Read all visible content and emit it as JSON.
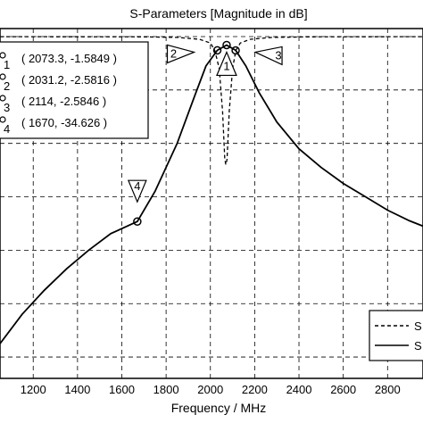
{
  "chart_data": {
    "type": "line",
    "title": "S-Parameters [Magnitude in dB]",
    "xlabel": "Frequency / MHz",
    "ylabel": "",
    "xlim": [
      1050,
      2960
    ],
    "ylim": [
      -64,
      1.5
    ],
    "x_ticks": [
      1200,
      1400,
      1600,
      1800,
      2000,
      2200,
      2400,
      2600,
      2800
    ],
    "x_tick_labels": [
      "1200",
      "1400",
      "1600",
      "1800",
      "2000",
      "2200",
      "2400",
      "2600",
      "2800"
    ],
    "y_gridlines": [
      0,
      -10,
      -20,
      -30,
      -40,
      -50,
      -60
    ],
    "grid": true,
    "series": [
      {
        "name": "S",
        "style": "dashed",
        "points": [
          [
            1050,
            -0.02
          ],
          [
            1400,
            -0.03
          ],
          [
            1700,
            -0.06
          ],
          [
            1850,
            -0.15
          ],
          [
            1950,
            -0.5
          ],
          [
            2000,
            -1.2
          ],
          [
            2020,
            -2.6
          ],
          [
            2040,
            -6
          ],
          [
            2055,
            -14
          ],
          [
            2065,
            -23
          ],
          [
            2070,
            -24
          ],
          [
            2075,
            -23
          ],
          [
            2085,
            -14
          ],
          [
            2100,
            -6
          ],
          [
            2115,
            -2.6
          ],
          [
            2135,
            -1.2
          ],
          [
            2180,
            -0.5
          ],
          [
            2280,
            -0.15
          ],
          [
            2450,
            -0.06
          ],
          [
            2700,
            -0.03
          ],
          [
            2960,
            -0.02
          ]
        ]
      },
      {
        "name": "S",
        "style": "solid",
        "points": [
          [
            1050,
            -57.5
          ],
          [
            1150,
            -52
          ],
          [
            1250,
            -47.5
          ],
          [
            1350,
            -43.5
          ],
          [
            1450,
            -40
          ],
          [
            1550,
            -36.9
          ],
          [
            1670,
            -34.626
          ],
          [
            1750,
            -29
          ],
          [
            1850,
            -20
          ],
          [
            1930,
            -11
          ],
          [
            1980,
            -5.5
          ],
          [
            2031.2,
            -2.5816
          ],
          [
            2073.3,
            -1.5849
          ],
          [
            2114,
            -2.5846
          ],
          [
            2160,
            -5.5
          ],
          [
            2220,
            -10.5
          ],
          [
            2300,
            -16
          ],
          [
            2400,
            -21
          ],
          [
            2500,
            -24.5
          ],
          [
            2600,
            -27.5
          ],
          [
            2700,
            -30
          ],
          [
            2800,
            -32.5
          ],
          [
            2900,
            -34.5
          ],
          [
            2960,
            -35.5
          ]
        ]
      }
    ],
    "markers": [
      {
        "id": "1",
        "x": 2073.3,
        "y": -1.5849
      },
      {
        "id": "2",
        "x": 2031.2,
        "y": -2.5816
      },
      {
        "id": "3",
        "x": 2114,
        "y": -2.5846
      },
      {
        "id": "4",
        "x": 1670,
        "y": -34.626
      }
    ],
    "marker_table": [
      {
        "label": "1",
        "text": "( 2073.3, -1.5849 )"
      },
      {
        "label": "2",
        "text": "( 2031.2, -2.5816 )"
      },
      {
        "label": "3",
        "text": "( 2114, -2.5846 )"
      },
      {
        "label": "4",
        "text": "( 1670, -34.626 )"
      }
    ],
    "legend": [
      {
        "label": "S",
        "style": "dashed"
      },
      {
        "label": "S",
        "style": "solid"
      }
    ],
    "legend_position": "bottom-right"
  }
}
